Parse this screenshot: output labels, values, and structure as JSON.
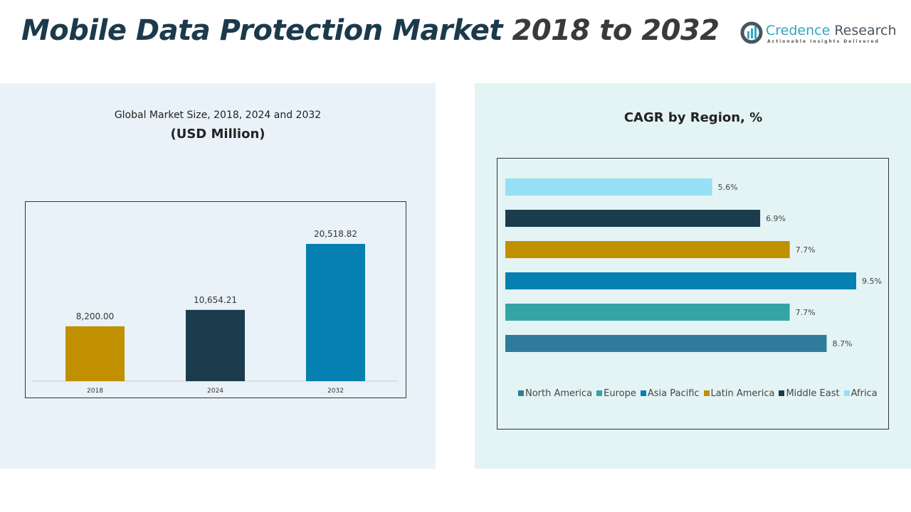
{
  "header": {
    "title_main": "Mobile Data Protection Market",
    "title_years": "2018 to 2032"
  },
  "logo": {
    "name1": "Credence",
    "name2": "Research",
    "tagline": "Actionable Insights Delivered"
  },
  "chart_data": [
    {
      "type": "bar",
      "title": "Global Market Size, 2018, 2024 and 2032",
      "subtitle": "(USD Million)",
      "categories": [
        "2018",
        "2024",
        "2032"
      ],
      "values": [
        8200.0,
        10654.21,
        20518.82
      ],
      "labels": [
        "8,200.00",
        "10,654.21",
        "20,518.82"
      ],
      "colors": [
        "#c09000",
        "#1a3c4d",
        "#0580b0"
      ]
    },
    {
      "type": "bar",
      "orientation": "horizontal",
      "title": "CAGR by Region, %",
      "categories": [
        "Africa",
        "Middle East",
        "Latin America",
        "Asia Pacific",
        "Europe",
        "North America"
      ],
      "values": [
        5.6,
        6.9,
        7.7,
        9.5,
        7.7,
        8.7
      ],
      "labels": [
        "5.6%",
        "6.9%",
        "7.7%",
        "9.5%",
        "7.7%",
        "8.7%"
      ],
      "colors": [
        "#96dff5",
        "#1a3c4d",
        "#c09000",
        "#0580b0",
        "#35a4a4",
        "#2f7b9b"
      ],
      "legend": [
        {
          "name": "North America",
          "color": "#2f7b9b"
        },
        {
          "name": "Europe",
          "color": "#35a4a4"
        },
        {
          "name": "Asia Pacific",
          "color": "#0580b0"
        },
        {
          "name": "Latin America",
          "color": "#c09000"
        },
        {
          "name": "Middle East",
          "color": "#1a3c4d"
        },
        {
          "name": "Africa",
          "color": "#96dff5"
        }
      ],
      "legend_position": "bottom"
    }
  ]
}
